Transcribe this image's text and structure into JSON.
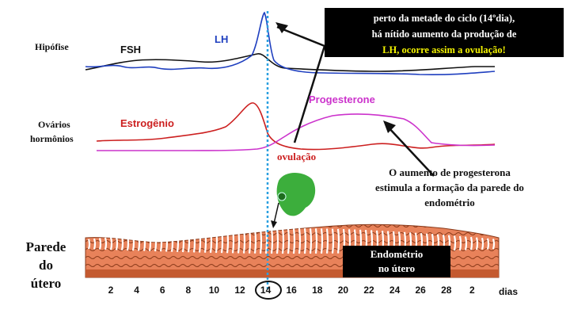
{
  "rows": {
    "pituitary": "Hipófise",
    "ovaries_line1": "Ovários",
    "ovaries_line2": "hormônios",
    "uterus_line1": "Parede",
    "uterus_line2": "do",
    "uterus_line3": "útero"
  },
  "hormones": {
    "fsh": "FSH",
    "lh": "LH",
    "estrogen": "Estrogênio",
    "progesterone": "Progesterone",
    "ovulation": "ovulação"
  },
  "callout": {
    "line1": "perto da metade do ciclo (14ºdia),",
    "line2": "há nítido aumento da produção de",
    "line3": "LH, ocorre assim a ovulação!"
  },
  "progesterone_note": {
    "line1": "O aumento de progesterona",
    "line2": "estimula a formação da parede do",
    "line3": "endométrio"
  },
  "endometrium_box": {
    "line1": "Endométrio",
    "line2": "no útero"
  },
  "axis": {
    "days": [
      "2",
      "4",
      "6",
      "8",
      "10",
      "12",
      "14",
      "16",
      "18",
      "20",
      "22",
      "24",
      "26",
      "28",
      "2"
    ],
    "highlighted_day": "14",
    "unit": "dias"
  },
  "colors": {
    "fsh": "#111111",
    "lh": "#1f3fbf",
    "estrogen": "#cc1f1f",
    "progesterone": "#cc33cc",
    "ovulation_line": "#2aa0e0",
    "callout_highlight": "#f3f300",
    "endometrium_tissue": "#e8825a",
    "egg": "#3cae3c"
  }
}
